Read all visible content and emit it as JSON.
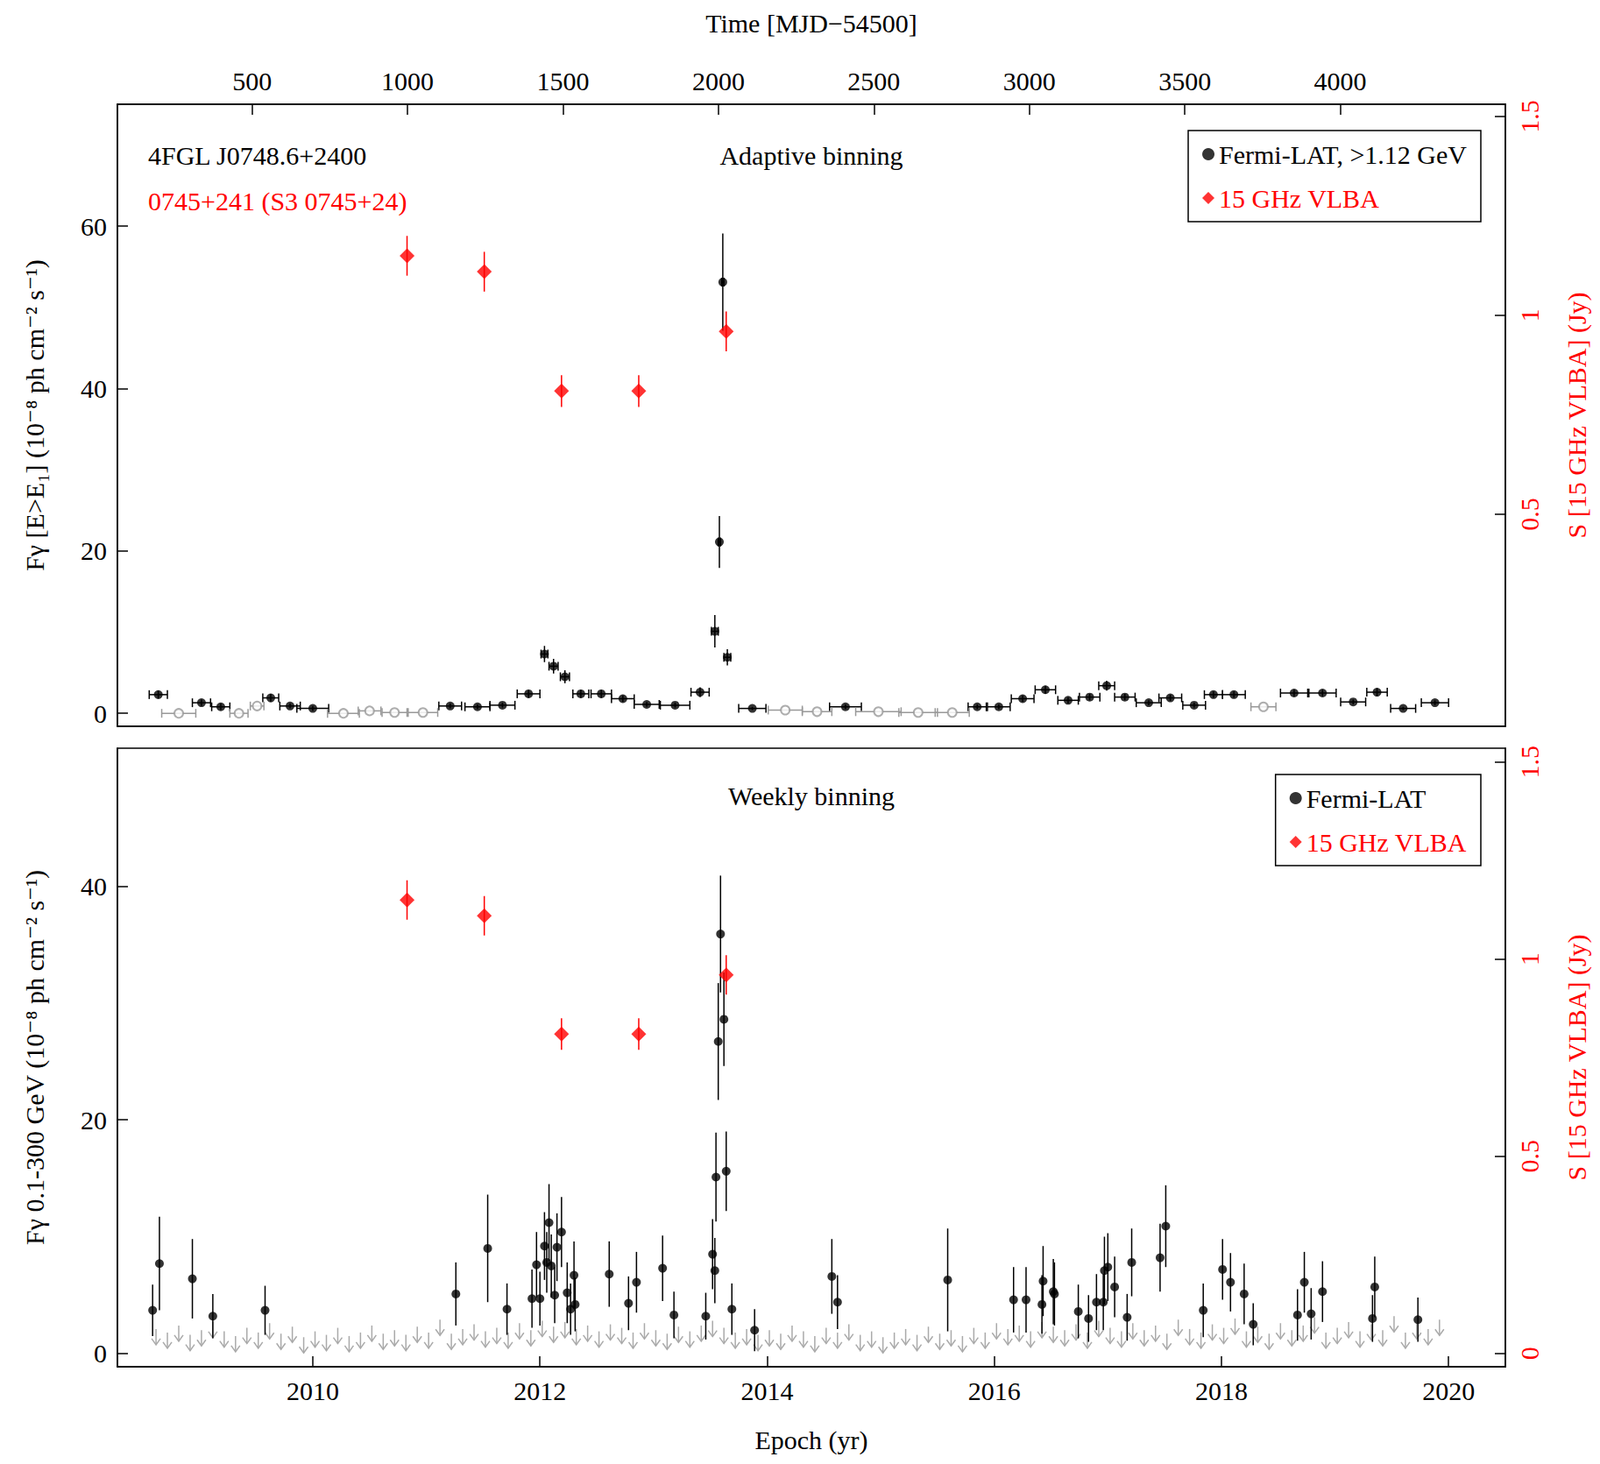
{
  "chart_data": [
    {
      "type": "scatter",
      "title": "Adaptive binning",
      "annotations": [
        {
          "text": "4FGL J0748.6+2400",
          "color": "#000000"
        },
        {
          "text": "0745+241 (S3 0745+24)",
          "color": "#ff0000"
        }
      ],
      "x2_label": "Time [MJD−54500]",
      "y_label": "Fγ [E>E₁] (10⁻⁸ ph cm⁻² s⁻¹)",
      "y2_label": "S [15 GHz VLBA] (Jy)",
      "xlim": [
        2008.28,
        2020.5
      ],
      "x2lim": [
        67,
        4531
      ],
      "x2ticks": [
        500,
        1000,
        1500,
        2000,
        2500,
        3000,
        3500,
        4000
      ],
      "ylim": [
        -1.6,
        75
      ],
      "yticks": [
        0,
        20,
        40,
        60
      ],
      "y2lim": [
        -0.033,
        1.531
      ],
      "y2ticks": [
        0.5,
        1,
        1.5
      ],
      "legend": "upper right",
      "series": [
        {
          "name": "Fermi-LAT, >1.12 GeV",
          "color": "#000000",
          "marker": "circle",
          "x": [
            2008.64,
            2009.02,
            2009.19,
            2009.63,
            2009.8,
            2010.0,
            2011.21,
            2011.45,
            2011.67,
            2011.9,
            2012.04,
            2012.12,
            2012.22,
            2012.36,
            2012.54,
            2012.73,
            2012.94,
            2013.19,
            2013.41,
            2013.54,
            2013.58,
            2013.61,
            2013.65,
            2013.87,
            2014.69,
            2015.85,
            2016.04,
            2016.25,
            2016.45,
            2016.65,
            2016.84,
            2016.99,
            2017.15,
            2017.36,
            2017.55,
            2017.76,
            2017.93,
            2018.11,
            2018.64,
            2018.89,
            2019.16,
            2019.37,
            2019.6,
            2019.88
          ],
          "values": [
            2.3,
            1.3,
            0.8,
            1.9,
            0.9,
            0.6,
            0.9,
            0.8,
            1.0,
            2.4,
            7.3,
            5.8,
            4.5,
            2.4,
            2.4,
            1.8,
            1.1,
            1.0,
            2.6,
            10.1,
            21.1,
            53.1,
            6.9,
            0.6,
            0.8,
            0.8,
            0.8,
            1.8,
            2.9,
            1.6,
            2.0,
            3.4,
            2.0,
            1.3,
            1.9,
            1.0,
            2.3,
            2.3,
            2.5,
            2.5,
            1.4,
            2.6,
            0.6,
            1.3
          ],
          "x_err": [
            0.08,
            0.08,
            0.08,
            0.07,
            0.09,
            0.14,
            0.1,
            0.11,
            0.11,
            0.1,
            0.03,
            0.04,
            0.04,
            0.07,
            0.09,
            0.1,
            0.11,
            0.13,
            0.08,
            0.03,
            0.01,
            0.01,
            0.03,
            0.12,
            0.14,
            0.08,
            0.1,
            0.1,
            0.09,
            0.09,
            0.09,
            0.07,
            0.09,
            0.11,
            0.1,
            0.1,
            0.08,
            0.1,
            0.12,
            0.12,
            0.11,
            0.09,
            0.11,
            0.12
          ],
          "y_err": [
            0.5,
            0.4,
            0.4,
            0.5,
            0.3,
            0.3,
            0.3,
            0.3,
            0.3,
            0.5,
            1.0,
            0.9,
            0.8,
            0.5,
            0.5,
            0.4,
            0.3,
            0.3,
            0.6,
            2.0,
            3.2,
            6.0,
            1.0,
            0.2,
            0.3,
            0.3,
            0.3,
            0.4,
            0.5,
            0.4,
            0.4,
            0.6,
            0.4,
            0.3,
            0.4,
            0.3,
            0.4,
            0.4,
            0.4,
            0.4,
            0.3,
            0.5,
            0.2,
            0.3
          ]
        },
        {
          "color": "#999999",
          "marker": "open_circle",
          "x": [
            2008.82,
            2009.35,
            2009.51,
            2010.27,
            2010.5,
            2010.72,
            2010.97,
            2014.16,
            2014.44,
            2014.98,
            2015.33,
            2015.63,
            2018.37
          ],
          "values": [
            0.0,
            0.0,
            0.9,
            0.0,
            0.3,
            0.1,
            0.1,
            0.4,
            0.2,
            0.2,
            0.1,
            0.1,
            0.8
          ],
          "x_err": [
            0.15,
            0.08,
            0.06,
            0.14,
            0.1,
            0.11,
            0.13,
            0.15,
            0.13,
            0.2,
            0.17,
            0.15,
            0.11
          ]
        },
        {
          "name": "15 GHz VLBA",
          "color": "#ff0000",
          "marker": "diamond",
          "axis": "y2",
          "x": [
            2010.83,
            2011.51,
            2012.19,
            2012.87,
            2013.64
          ],
          "values": [
            1.15,
            1.11,
            0.81,
            0.81,
            0.96
          ],
          "y_err": [
            0.05,
            0.05,
            0.04,
            0.04,
            0.05
          ]
        }
      ]
    },
    {
      "type": "scatter",
      "title": "Weekly binning",
      "x_label": "Epoch (yr)",
      "y_label": "Fγ 0.1-300 GeV (10⁻⁸ ph cm⁻² s⁻¹)",
      "y2_label": "S [15 GHz VLBA] (Jy)",
      "xlim": [
        2008.28,
        2020.5
      ],
      "xticks": [
        2010,
        2012,
        2014,
        2016,
        2018,
        2020
      ],
      "ylim": [
        -1.13,
        51.8
      ],
      "yticks": [
        0,
        20,
        40
      ],
      "y2lim": [
        -0.034,
        1.535
      ],
      "y2ticks": [
        0,
        0.5,
        1,
        1.5
      ],
      "legend": "upper right",
      "series": [
        {
          "type": "upper_limit",
          "color": "#aaaaaa",
          "marker": "arrow",
          "x": [
            2008.62,
            2008.72,
            2008.82,
            2008.92,
            2009.02,
            2009.12,
            2009.22,
            2009.32,
            2009.42,
            2009.52,
            2009.62,
            2009.72,
            2009.82,
            2009.92,
            2010.02,
            2010.12,
            2010.22,
            2010.32,
            2010.42,
            2010.52,
            2010.62,
            2010.72,
            2010.82,
            2010.92,
            2011.02,
            2011.12,
            2011.22,
            2011.32,
            2011.42,
            2011.52,
            2011.62,
            2011.72,
            2011.82,
            2011.92,
            2012.02,
            2012.12,
            2012.22,
            2012.32,
            2012.42,
            2012.52,
            2012.62,
            2012.72,
            2012.82,
            2012.92,
            2013.02,
            2013.12,
            2013.22,
            2013.32,
            2013.42,
            2013.52,
            2013.62,
            2013.72,
            2013.82,
            2013.92,
            2014.02,
            2014.12,
            2014.22,
            2014.32,
            2014.42,
            2014.52,
            2014.62,
            2014.72,
            2014.82,
            2014.92,
            2015.02,
            2015.12,
            2015.22,
            2015.32,
            2015.42,
            2015.52,
            2015.62,
            2015.72,
            2015.82,
            2015.92,
            2016.02,
            2016.12,
            2016.22,
            2016.32,
            2016.42,
            2016.52,
            2016.62,
            2016.72,
            2016.82,
            2016.92,
            2017.02,
            2017.12,
            2017.22,
            2017.32,
            2017.42,
            2017.52,
            2017.62,
            2017.72,
            2017.82,
            2017.92,
            2018.02,
            2018.12,
            2018.22,
            2018.32,
            2018.42,
            2018.52,
            2018.62,
            2018.72,
            2018.82,
            2018.92,
            2019.02,
            2019.12,
            2019.22,
            2019.32,
            2019.42,
            2019.52,
            2019.62,
            2019.72,
            2019.82,
            2019.92
          ],
          "values": [
            2.1,
            1.8,
            2.4,
            1.6,
            2.0,
            2.7,
            1.9,
            1.5,
            2.2,
            1.8,
            2.6,
            1.7,
            2.3,
            1.4,
            1.9,
            1.6,
            2.2,
            1.5,
            1.8,
            2.4,
            1.7,
            2.0,
            1.6,
            2.3,
            1.8,
            2.9,
            1.7,
            2.1,
            2.5,
            1.9,
            2.2,
            1.8,
            2.6,
            2.0,
            2.8,
            2.3,
            2.7,
            2.1,
            2.4,
            1.9,
            2.5,
            2.2,
            1.8,
            2.6,
            2.0,
            1.7,
            2.3,
            1.9,
            2.4,
            2.8,
            2.2,
            1.8,
            2.1,
            1.6,
            2.0,
            1.7,
            2.4,
            1.9,
            1.5,
            2.2,
            1.8,
            2.5,
            1.6,
            1.9,
            1.4,
            1.8,
            2.1,
            1.6,
            2.3,
            1.7,
            2.0,
            1.5,
            2.2,
            1.8,
            2.6,
            2.1,
            2.4,
            1.9,
            2.7,
            2.3,
            2.0,
            2.5,
            1.8,
            2.8,
            2.2,
            1.9,
            2.6,
            2.0,
            2.4,
            1.7,
            2.9,
            2.1,
            1.8,
            2.5,
            2.2,
            3.0,
            1.9,
            2.3,
            1.7,
            2.6,
            2.0,
            2.4,
            3.1,
            1.8,
            2.2,
            2.7,
            1.9,
            2.5,
            2.0,
            3.2,
            1.8,
            2.6,
            2.1,
            2.9
          ]
        },
        {
          "name": "Fermi-LAT",
          "color": "#000000",
          "marker": "circle",
          "x": [
            2008.59,
            2008.65,
            2008.94,
            2009.12,
            2009.58,
            2011.26,
            2011.54,
            2011.71,
            2011.93,
            2011.97,
            2012.0,
            2012.04,
            2012.06,
            2012.08,
            2012.1,
            2012.13,
            2012.15,
            2012.19,
            2012.24,
            2012.27,
            2012.3,
            2012.31,
            2012.61,
            2012.78,
            2012.85,
            2013.08,
            2013.18,
            2013.46,
            2013.52,
            2013.54,
            2013.55,
            2013.57,
            2013.59,
            2013.62,
            2013.64,
            2013.69,
            2013.89,
            2014.57,
            2014.62,
            2015.59,
            2016.17,
            2016.28,
            2016.42,
            2016.43,
            2016.52,
            2016.53,
            2016.74,
            2016.83,
            2016.9,
            2016.96,
            2016.97,
            2017.0,
            2017.06,
            2017.17,
            2017.21,
            2017.46,
            2017.51,
            2017.84,
            2018.01,
            2018.08,
            2018.2,
            2018.28,
            2018.67,
            2018.73,
            2018.79,
            2018.89,
            2019.33,
            2019.35,
            2019.73
          ],
          "values": [
            3.7,
            7.7,
            6.4,
            3.2,
            3.7,
            5.1,
            9.0,
            3.8,
            4.7,
            7.6,
            4.7,
            9.2,
            7.8,
            11.2,
            7.5,
            5.0,
            9.1,
            10.4,
            5.2,
            3.8,
            6.7,
            4.2,
            6.8,
            4.3,
            6.1,
            7.3,
            3.3,
            3.2,
            8.5,
            7.1,
            15.1,
            26.7,
            35.9,
            28.6,
            15.6,
            3.8,
            2.0,
            6.6,
            4.4,
            6.3,
            4.6,
            4.6,
            4.2,
            6.2,
            5.3,
            5.1,
            3.6,
            3.0,
            4.4,
            4.4,
            7.1,
            7.4,
            5.7,
            3.1,
            7.8,
            8.2,
            10.9,
            3.7,
            7.2,
            6.1,
            5.1,
            2.5,
            3.3,
            6.1,
            3.4,
            5.3,
            3.0,
            5.7,
            2.9
          ],
          "y_err": [
            2.2,
            4.0,
            3.4,
            1.9,
            2.1,
            2.7,
            4.6,
            2.2,
            2.5,
            2.8,
            2.3,
            2.9,
            2.6,
            3.3,
            2.7,
            2.4,
            2.9,
            3.0,
            2.6,
            2.2,
            2.9,
            2.3,
            2.8,
            2.3,
            2.6,
            2.8,
            2.0,
            2.0,
            3.0,
            2.8,
            3.8,
            5.0,
            5.0,
            4.0,
            3.4,
            2.2,
            1.8,
            3.2,
            2.3,
            4.4,
            2.8,
            2.8,
            2.5,
            3.0,
            2.8,
            2.7,
            2.3,
            2.0,
            2.4,
            2.4,
            2.9,
            2.9,
            2.6,
            2.0,
            2.9,
            2.9,
            3.5,
            2.3,
            2.6,
            2.5,
            2.6,
            1.8,
            2.2,
            2.6,
            2.2,
            2.6,
            2.0,
            2.6,
            1.9
          ]
        },
        {
          "name": "15 GHz VLBA",
          "color": "#ff0000",
          "marker": "diamond",
          "axis": "y2",
          "x": [
            2010.83,
            2011.51,
            2012.19,
            2012.87,
            2013.64
          ],
          "values": [
            1.15,
            1.11,
            0.81,
            0.81,
            0.96
          ],
          "y_err": [
            0.05,
            0.05,
            0.04,
            0.04,
            0.05
          ]
        }
      ]
    }
  ]
}
